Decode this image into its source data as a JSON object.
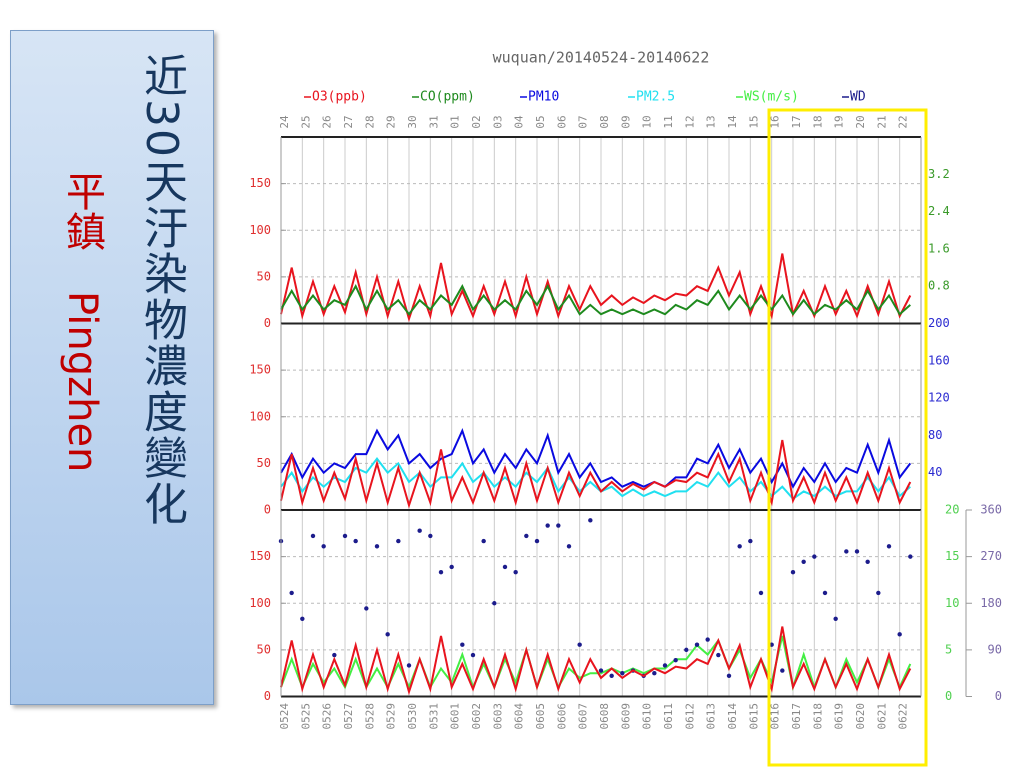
{
  "side": {
    "title": "近30天汙染物濃度變化",
    "station": "平鎮",
    "station_en": "Pingzhen"
  },
  "chart_data": [
    {
      "type": "line",
      "title": "wuquan/20140524-20140622",
      "x": [
        0,
        0.5,
        1,
        1.5,
        2,
        2.5,
        3,
        3.5,
        4,
        4.5,
        5,
        5.5,
        6,
        6.5,
        7,
        7.5,
        8,
        8.5,
        9,
        9.5,
        10,
        10.5,
        11,
        11.5,
        12,
        12.5,
        13,
        13.5,
        14,
        14.5,
        15,
        15.5,
        16,
        16.5,
        17,
        17.5,
        18,
        18.5,
        19,
        19.5,
        20,
        20.5,
        21,
        21.5,
        22,
        22.5,
        23,
        23.5,
        24,
        24.5,
        25,
        25.5,
        26,
        26.5,
        27,
        27.5,
        28,
        28.5,
        29,
        29.5
      ],
      "xlim": [
        0,
        30
      ],
      "xticks": [
        {
          "value": 0,
          "label": "24"
        },
        {
          "value": 1,
          "label": "25"
        },
        {
          "value": 2,
          "label": "26"
        },
        {
          "value": 3,
          "label": "27"
        },
        {
          "value": 4,
          "label": "28"
        },
        {
          "value": 5,
          "label": "29"
        },
        {
          "value": 6,
          "label": "30"
        },
        {
          "value": 7,
          "label": "31"
        },
        {
          "value": 8,
          "label": "01"
        },
        {
          "value": 9,
          "label": "02"
        },
        {
          "value": 10,
          "label": "03"
        },
        {
          "value": 11,
          "label": "04"
        },
        {
          "value": 12,
          "label": "05"
        },
        {
          "value": 13,
          "label": "06"
        },
        {
          "value": 14,
          "label": "07"
        },
        {
          "value": 15,
          "label": "08"
        },
        {
          "value": 16,
          "label": "09"
        },
        {
          "value": 17,
          "label": "10"
        },
        {
          "value": 18,
          "label": "11"
        },
        {
          "value": 19,
          "label": "12"
        },
        {
          "value": 20,
          "label": "13"
        },
        {
          "value": 21,
          "label": "14"
        },
        {
          "value": 22,
          "label": "15"
        },
        {
          "value": 23,
          "label": "16"
        },
        {
          "value": 24,
          "label": "17"
        },
        {
          "value": 25,
          "label": "18"
        },
        {
          "value": 26,
          "label": "19"
        },
        {
          "value": 27,
          "label": "20"
        },
        {
          "value": 28,
          "label": "21"
        },
        {
          "value": 29,
          "label": "22"
        }
      ],
      "ylim": [
        0,
        200
      ],
      "yticks": [
        0,
        50,
        100,
        150
      ],
      "ycolor": "#e03030",
      "y2lim": [
        0,
        4
      ],
      "y2ticks": [
        0.8,
        1.6,
        2.4,
        3.2
      ],
      "y2color": "#3a9a2a",
      "grid": true,
      "series": [
        {
          "name": "O3(ppb)",
          "color": "#e8141e",
          "values": [
            10,
            60,
            8,
            45,
            10,
            40,
            12,
            55,
            10,
            50,
            8,
            45,
            5,
            40,
            8,
            65,
            10,
            35,
            8,
            40,
            10,
            45,
            8,
            50,
            10,
            45,
            8,
            40,
            15,
            40,
            20,
            30,
            20,
            28,
            22,
            30,
            25,
            32,
            30,
            40,
            35,
            60,
            30,
            55,
            10,
            40,
            8,
            75,
            10,
            35,
            8,
            40,
            10,
            35,
            8,
            40,
            10,
            45,
            8,
            30
          ]
        },
        {
          "name": "CO(ppm)",
          "color": "#1e8a1e",
          "axis": "y2",
          "values": [
            0.3,
            0.7,
            0.3,
            0.6,
            0.3,
            0.5,
            0.4,
            0.8,
            0.3,
            0.7,
            0.3,
            0.5,
            0.2,
            0.5,
            0.3,
            0.6,
            0.4,
            0.8,
            0.3,
            0.6,
            0.3,
            0.5,
            0.3,
            0.7,
            0.4,
            0.8,
            0.3,
            0.6,
            0.2,
            0.4,
            0.2,
            0.3,
            0.2,
            0.3,
            0.2,
            0.3,
            0.2,
            0.4,
            0.3,
            0.5,
            0.4,
            0.7,
            0.3,
            0.6,
            0.3,
            0.6,
            0.3,
            0.6,
            0.2,
            0.5,
            0.2,
            0.4,
            0.3,
            0.5,
            0.3,
            0.7,
            0.3,
            0.6,
            0.2,
            0.4
          ]
        }
      ]
    },
    {
      "type": "line",
      "x": [
        0,
        0.5,
        1,
        1.5,
        2,
        2.5,
        3,
        3.5,
        4,
        4.5,
        5,
        5.5,
        6,
        6.5,
        7,
        7.5,
        8,
        8.5,
        9,
        9.5,
        10,
        10.5,
        11,
        11.5,
        12,
        12.5,
        13,
        13.5,
        14,
        14.5,
        15,
        15.5,
        16,
        16.5,
        17,
        17.5,
        18,
        18.5,
        19,
        19.5,
        20,
        20.5,
        21,
        21.5,
        22,
        22.5,
        23,
        23.5,
        24,
        24.5,
        25,
        25.5,
        26,
        26.5,
        27,
        27.5,
        28,
        28.5,
        29,
        29.5
      ],
      "xlim": [
        0,
        30
      ],
      "ylim": [
        0,
        200
      ],
      "yticks": [
        0,
        50,
        100,
        150
      ],
      "ycolor": "#e03030",
      "y2lim": [
        0,
        200
      ],
      "y2ticks": [
        40,
        80,
        120,
        160,
        200
      ],
      "y2color": "#2a2ad0",
      "grid": true,
      "series": [
        {
          "name": "PM10",
          "color": "#0a0ae0",
          "axis": "y2",
          "values": [
            40,
            60,
            35,
            55,
            40,
            50,
            45,
            60,
            60,
            85,
            65,
            80,
            50,
            60,
            45,
            55,
            60,
            85,
            50,
            65,
            40,
            60,
            45,
            65,
            50,
            80,
            40,
            60,
            35,
            50,
            30,
            35,
            25,
            30,
            25,
            30,
            25,
            35,
            35,
            55,
            50,
            70,
            45,
            65,
            40,
            55,
            30,
            50,
            25,
            45,
            30,
            50,
            30,
            45,
            40,
            70,
            40,
            75,
            35,
            50
          ]
        },
        {
          "name": "PM2.5",
          "color": "#20e0f0",
          "axis": "y2",
          "values": [
            25,
            40,
            20,
            35,
            25,
            35,
            30,
            45,
            40,
            55,
            40,
            50,
            30,
            40,
            25,
            35,
            35,
            50,
            30,
            40,
            25,
            35,
            25,
            40,
            30,
            45,
            20,
            35,
            20,
            30,
            20,
            25,
            15,
            22,
            15,
            20,
            15,
            20,
            20,
            30,
            25,
            40,
            25,
            35,
            20,
            30,
            15,
            25,
            12,
            20,
            15,
            25,
            15,
            20,
            20,
            35,
            20,
            35,
            15,
            25
          ]
        },
        {
          "color": "#e8141e",
          "values": [
            10,
            60,
            8,
            45,
            10,
            40,
            12,
            55,
            10,
            50,
            8,
            45,
            5,
            40,
            8,
            65,
            10,
            35,
            8,
            40,
            10,
            45,
            8,
            50,
            10,
            45,
            8,
            40,
            15,
            40,
            20,
            30,
            20,
            28,
            22,
            30,
            25,
            32,
            30,
            40,
            35,
            60,
            30,
            55,
            10,
            40,
            8,
            75,
            10,
            35,
            8,
            40,
            10,
            35,
            8,
            40,
            10,
            45,
            8,
            30
          ]
        }
      ]
    },
    {
      "type": "line",
      "x": [
        0,
        0.5,
        1,
        1.5,
        2,
        2.5,
        3,
        3.5,
        4,
        4.5,
        5,
        5.5,
        6,
        6.5,
        7,
        7.5,
        8,
        8.5,
        9,
        9.5,
        10,
        10.5,
        11,
        11.5,
        12,
        12.5,
        13,
        13.5,
        14,
        14.5,
        15,
        15.5,
        16,
        16.5,
        17,
        17.5,
        18,
        18.5,
        19,
        19.5,
        20,
        20.5,
        21,
        21.5,
        22,
        22.5,
        23,
        23.5,
        24,
        24.5,
        25,
        25.5,
        26,
        26.5,
        27,
        27.5,
        28,
        28.5,
        29,
        29.5
      ],
      "xlim": [
        0,
        30
      ],
      "xticks": [
        {
          "value": 0,
          "label": "0524"
        },
        {
          "value": 1,
          "label": "0525"
        },
        {
          "value": 2,
          "label": "0526"
        },
        {
          "value": 3,
          "label": "0527"
        },
        {
          "value": 4,
          "label": "0528"
        },
        {
          "value": 5,
          "label": "0529"
        },
        {
          "value": 6,
          "label": "0530"
        },
        {
          "value": 7,
          "label": "0531"
        },
        {
          "value": 8,
          "label": "0601"
        },
        {
          "value": 9,
          "label": "0602"
        },
        {
          "value": 10,
          "label": "0603"
        },
        {
          "value": 11,
          "label": "0604"
        },
        {
          "value": 12,
          "label": "0605"
        },
        {
          "value": 13,
          "label": "0606"
        },
        {
          "value": 14,
          "label": "0607"
        },
        {
          "value": 15,
          "label": "0608"
        },
        {
          "value": 16,
          "label": "0609"
        },
        {
          "value": 17,
          "label": "0610"
        },
        {
          "value": 18,
          "label": "0611"
        },
        {
          "value": 19,
          "label": "0612"
        },
        {
          "value": 20,
          "label": "0613"
        },
        {
          "value": 21,
          "label": "0614"
        },
        {
          "value": 22,
          "label": "0615"
        },
        {
          "value": 23,
          "label": "0616"
        },
        {
          "value": 24,
          "label": "0617"
        },
        {
          "value": 25,
          "label": "0618"
        },
        {
          "value": 26,
          "label": "0619"
        },
        {
          "value": 27,
          "label": "0620"
        },
        {
          "value": 28,
          "label": "0621"
        },
        {
          "value": 29,
          "label": "0622"
        }
      ],
      "ylim": [
        0,
        200
      ],
      "yticks": [
        0,
        50,
        100,
        150
      ],
      "ycolor": "#e03030",
      "y2lim": [
        0,
        20
      ],
      "y2ticks": [
        0,
        5,
        10,
        15,
        20
      ],
      "y2color": "#50d050",
      "y3lim": [
        0,
        360
      ],
      "y3ticks": [
        0,
        90,
        180,
        270,
        360
      ],
      "y3color": "#7a6aa8",
      "grid": true,
      "series": [
        {
          "name": "WS(m/s)",
          "color": "#44ee44",
          "axis": "y2",
          "values": [
            1,
            4,
            1,
            3.5,
            1.5,
            3,
            1,
            4,
            1,
            3,
            1,
            3.5,
            1,
            4,
            1,
            3,
            1.5,
            4.5,
            1,
            3.5,
            1,
            4,
            1.5,
            5,
            1,
            4,
            1,
            3,
            2,
            2.5,
            2.5,
            3,
            2.5,
            3,
            2.5,
            3,
            3,
            4,
            4,
            5.5,
            4.5,
            6,
            3,
            5,
            2,
            4,
            1.5,
            6.5,
            1,
            4.5,
            1,
            4,
            1,
            4,
            1.5,
            4,
            1,
            4,
            1,
            3.5
          ]
        },
        {
          "name": "WD",
          "color": "#1c1c8c",
          "type": "scatter",
          "axis": "y3",
          "values": [
            300,
            200,
            150,
            310,
            290,
            80,
            310,
            300,
            170,
            290,
            120,
            300,
            60,
            320,
            310,
            240,
            250,
            100,
            80,
            300,
            180,
            250,
            240,
            310,
            300,
            330,
            330,
            290,
            100,
            340,
            50,
            40,
            45,
            50,
            40,
            45,
            60,
            70,
            90,
            100,
            110,
            80,
            40,
            290,
            300,
            200,
            100,
            50,
            240,
            260,
            270,
            200,
            150,
            280,
            280,
            260,
            200,
            290,
            120,
            270
          ]
        },
        {
          "color": "#e8141e",
          "values": [
            10,
            60,
            8,
            45,
            10,
            40,
            12,
            55,
            10,
            50,
            8,
            45,
            5,
            40,
            8,
            65,
            10,
            35,
            8,
            40,
            10,
            45,
            8,
            50,
            10,
            45,
            8,
            40,
            15,
            40,
            20,
            30,
            20,
            28,
            22,
            30,
            25,
            32,
            30,
            40,
            35,
            60,
            30,
            55,
            10,
            40,
            8,
            75,
            10,
            35,
            8,
            40,
            10,
            35,
            8,
            40,
            10,
            45,
            8,
            30
          ]
        }
      ]
    }
  ]
}
